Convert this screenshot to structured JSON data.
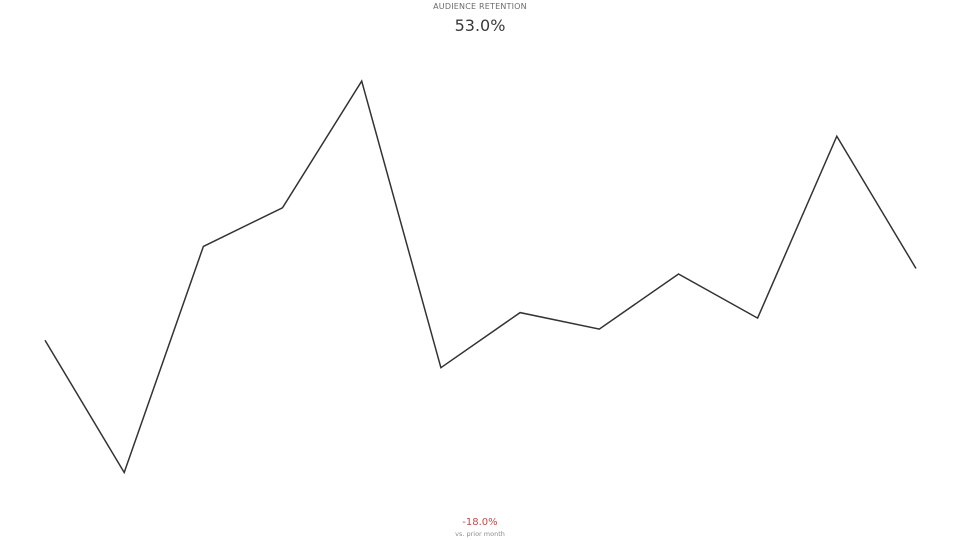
{
  "kpi": {
    "label": "AUDIENCE RETENTION",
    "value": "53.0%",
    "delta": "-18.0%",
    "delta_caption": "vs. prior month",
    "delta_color": "#c4484a"
  },
  "chart_data": {
    "type": "line",
    "title": "AUDIENCE RETENTION",
    "x": [
      1,
      2,
      3,
      4,
      5,
      6,
      7,
      8,
      9,
      10,
      11,
      12
    ],
    "series": [
      {
        "values": [
          51.1,
          48.7,
          52.8,
          53.5,
          55.8,
          50.6,
          51.6,
          51.3,
          52.3,
          51.5,
          54.8,
          52.4
        ],
        "color": "#333333"
      }
    ],
    "ylim": [
      48.4,
      56.2
    ],
    "grid": false,
    "legend": "none",
    "axes_visible": false
  }
}
